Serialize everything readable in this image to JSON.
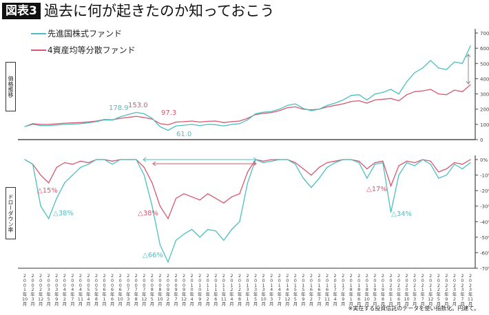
{
  "header": {
    "badge": "図表3",
    "title": "過去に何が起きたのか知っておこう"
  },
  "legend": [
    {
      "label": "先進国株式ファンド",
      "color": "#4bbfc0"
    },
    {
      "label": "4資産均等分散ファンド",
      "color": "#d9566e"
    }
  ],
  "side_labels": {
    "price": "価格推移",
    "drawdown": "ドローダウン率"
  },
  "note": "※実在する投資信託のデータを使い指数化。円建て。",
  "chart_data": [
    {
      "type": "line",
      "ylim": [
        0,
        700
      ],
      "yticks": [
        "0",
        "100",
        "200",
        "300",
        "400",
        "500",
        "600",
        "700"
      ],
      "x": [
        "2001年10月",
        "2002年3月",
        "2002年12月",
        "2003年5月",
        "2003年9月",
        "2004年2月",
        "2004年7月",
        "2004年11月",
        "2005年4月",
        "2005年8月",
        "2006年1月",
        "2006年6月",
        "2006年10月",
        "2007年3月",
        "2007年8月",
        "2007年12月",
        "2008年5月",
        "2008年10月",
        "2009年2月",
        "2009年7月",
        "2009年12月",
        "2010年4月",
        "2010年9月",
        "2011年2月",
        "2011年6月",
        "2011年11月",
        "2012年4月",
        "2012年8月",
        "2013年1月",
        "2013年5月",
        "2013年10月",
        "2014年3月",
        "2014年7月",
        "2014年12月",
        "2015年5月",
        "2015年9月",
        "2016年2月",
        "2016年7月",
        "2016年11月",
        "2017年4月",
        "2017年9月",
        "2018年1月",
        "2018年6月",
        "2018年10月",
        "2019年3月",
        "2019年8月",
        "2020年1月",
        "2020年6月",
        "2020年10月",
        "2021年3月",
        "2021年7月",
        "2021年12月",
        "2022年5月",
        "2022年9月",
        "2023年2月",
        "2023年7月",
        "2023年11月"
      ],
      "series": [
        {
          "name": "先進国株式ファンド",
          "color": "#4bbfc0",
          "values": [
            86,
            100,
            92,
            92,
            96,
            100,
            102,
            105,
            110,
            118,
            130,
            128,
            150,
            165,
            178.9,
            170,
            140,
            85,
            61,
            90,
            95,
            100,
            92,
            100,
            98,
            90,
            100,
            105,
            130,
            170,
            180,
            185,
            200,
            225,
            235,
            205,
            190,
            200,
            225,
            240,
            260,
            290,
            295,
            260,
            300,
            310,
            330,
            300,
            380,
            440,
            470,
            520,
            470,
            460,
            510,
            500,
            615
          ]
        },
        {
          "name": "4資産均等分散ファンド",
          "color": "#d9566e",
          "values": [
            86,
            105,
            100,
            100,
            104,
            108,
            110,
            112,
            116,
            122,
            132,
            130,
            140,
            146,
            153,
            145,
            135,
            105,
            97.3,
            115,
            118,
            122,
            115,
            120,
            122,
            112,
            118,
            122,
            140,
            165,
            172,
            178,
            190,
            210,
            215,
            200,
            195,
            200,
            215,
            225,
            235,
            250,
            255,
            240,
            260,
            265,
            270,
            255,
            295,
            315,
            320,
            330,
            300,
            295,
            325,
            315,
            360
          ]
        }
      ],
      "annotations": [
        {
          "text": "178.9",
          "series": 0
        },
        {
          "text": "153.0",
          "series": 1
        },
        {
          "text": "97.3",
          "series": 1
        },
        {
          "text": "61.0",
          "series": 0
        }
      ]
    },
    {
      "type": "line",
      "ylim": [
        -70,
        0
      ],
      "yticks": [
        "0%",
        "-10%",
        "-20%",
        "-30%",
        "-40%",
        "-50%",
        "-60%",
        "-70%"
      ],
      "series": [
        {
          "name": "先進国株式ファンド",
          "color": "#4bbfc0",
          "values": [
            0,
            -3,
            -30,
            -38,
            -25,
            -15,
            -10,
            -5,
            -3,
            0,
            0,
            -3,
            0,
            0,
            0,
            -10,
            -30,
            -55,
            -66,
            -52,
            -48,
            -45,
            -50,
            -45,
            -46,
            -52,
            -45,
            -40,
            -15,
            0,
            -2,
            -1,
            0,
            0,
            -3,
            -12,
            -18,
            -12,
            -5,
            -2,
            0,
            0,
            -2,
            -12,
            -3,
            -2,
            -34,
            -10,
            -2,
            -4,
            0,
            -3,
            -12,
            -10,
            -3,
            -6,
            -2
          ]
        },
        {
          "name": "4資産均等分散ファンド",
          "color": "#d9566e",
          "values": [
            0,
            -3,
            -10,
            -15,
            -5,
            -2,
            -3,
            -1,
            -2,
            0,
            0,
            -1,
            0,
            0,
            0,
            -5,
            -15,
            -30,
            -38,
            -25,
            -22,
            -24,
            -26,
            -22,
            -25,
            -28,
            -24,
            -22,
            -8,
            0,
            -1,
            0,
            0,
            0,
            -2,
            -6,
            -10,
            -5,
            -2,
            -1,
            0,
            0,
            -1,
            -6,
            -2,
            -1,
            -17,
            -4,
            -1,
            -2,
            0,
            -1,
            -8,
            -6,
            -2,
            -3,
            0
          ]
        }
      ],
      "annotations": [
        {
          "text": "△15%",
          "series": 1
        },
        {
          "text": "△38%",
          "series": 0
        },
        {
          "text": "△38%",
          "series": 1
        },
        {
          "text": "△66%",
          "series": 0
        },
        {
          "text": "△17%",
          "series": 1
        },
        {
          "text": "△34%",
          "series": 0
        }
      ]
    }
  ]
}
